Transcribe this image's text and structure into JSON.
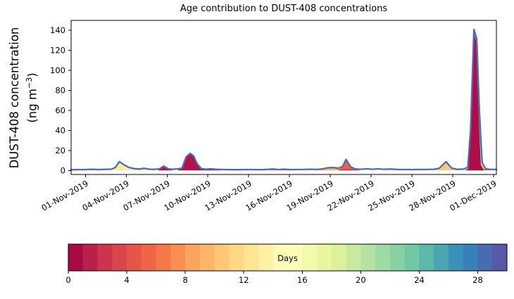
{
  "figure": {
    "title": "Age contribution to DUST-408 concentrations",
    "ylabel": {
      "line1": "DUST-408 concentration",
      "line2_prefix": "(ng m",
      "line2_sup": "−3",
      "line2_suffix": ")"
    }
  },
  "chart_data": {
    "type": "area",
    "subtype": "stacked-area-by-age",
    "title": "Age contribution to DUST-408 concentrations",
    "xlabel": "",
    "ylabel": "DUST-408 concentration (ng m^-3)",
    "x_unit": "days since 01-Nov-2019 00:00",
    "xlim": [
      -1.05,
      30.2
    ],
    "ylim": [
      -4,
      150
    ],
    "grid": false,
    "legend": "colorbar",
    "y_ticks": [
      0,
      20,
      40,
      60,
      80,
      100,
      120,
      140
    ],
    "x_ticks": [
      {
        "day": 0,
        "label": "01-Nov-2019"
      },
      {
        "day": 3,
        "label": "04-Nov-2019"
      },
      {
        "day": 6,
        "label": "07-Nov-2019"
      },
      {
        "day": 9,
        "label": "10-Nov-2019"
      },
      {
        "day": 12,
        "label": "13-Nov-2019"
      },
      {
        "day": 15,
        "label": "16-Nov-2019"
      },
      {
        "day": 18,
        "label": "19-Nov-2019"
      },
      {
        "day": 21,
        "label": "22-Nov-2019"
      },
      {
        "day": 24,
        "label": "25-Nov-2019"
      },
      {
        "day": 27,
        "label": "28-Nov-2019"
      },
      {
        "day": 30,
        "label": "01-Dec-2019"
      }
    ],
    "line_color": "#4a6db5",
    "line_width": 2.3,
    "total_line": [
      [
        -1.05,
        0.8
      ],
      [
        0,
        0.9
      ],
      [
        0.5,
        1.1
      ],
      [
        1,
        0.9
      ],
      [
        1.5,
        1.1
      ],
      [
        1.9,
        1.3
      ],
      [
        2.2,
        3.0
      ],
      [
        2.5,
        8.8
      ],
      [
        2.8,
        6.0
      ],
      [
        3.2,
        3.0
      ],
      [
        3.6,
        1.8
      ],
      [
        4.0,
        1.4
      ],
      [
        4.3,
        2.1
      ],
      [
        4.7,
        1.3
      ],
      [
        5.1,
        1.1
      ],
      [
        5.45,
        1.6
      ],
      [
        5.75,
        4.3
      ],
      [
        6.1,
        1.6
      ],
      [
        6.4,
        1.1
      ],
      [
        6.8,
        1.6
      ],
      [
        7.1,
        2.2
      ],
      [
        7.4,
        13.5
      ],
      [
        7.7,
        17.0
      ],
      [
        7.95,
        14.5
      ],
      [
        8.2,
        7.0
      ],
      [
        8.5,
        2.0
      ],
      [
        8.8,
        1.3
      ],
      [
        9.2,
        1.6
      ],
      [
        9.6,
        1.1
      ],
      [
        10.2,
        0.9
      ],
      [
        11,
        0.8
      ],
      [
        12,
        0.9
      ],
      [
        13,
        0.8
      ],
      [
        13.8,
        1.4
      ],
      [
        14.2,
        0.9
      ],
      [
        14.6,
        1.3
      ],
      [
        15,
        0.9
      ],
      [
        16,
        1.0
      ],
      [
        16.5,
        1.2
      ],
      [
        17,
        1.0
      ],
      [
        17.4,
        1.5
      ],
      [
        17.8,
        2.7
      ],
      [
        18.2,
        2.9
      ],
      [
        18.6,
        2.2
      ],
      [
        18.9,
        4.0
      ],
      [
        19.15,
        11.0
      ],
      [
        19.5,
        3.5
      ],
      [
        19.8,
        1.6
      ],
      [
        20.2,
        1.2
      ],
      [
        20.7,
        1.6
      ],
      [
        21.1,
        1.2
      ],
      [
        21.5,
        1.6
      ],
      [
        21.9,
        1.2
      ],
      [
        22.4,
        1.4
      ],
      [
        23,
        1.0
      ],
      [
        24,
        0.9
      ],
      [
        25,
        1.0
      ],
      [
        25.6,
        1.2
      ],
      [
        26.0,
        2.2
      ],
      [
        26.5,
        8.8
      ],
      [
        26.9,
        2.4
      ],
      [
        27.3,
        1.1
      ],
      [
        27.8,
        1.4
      ],
      [
        28.1,
        3.0
      ],
      [
        28.3,
        40
      ],
      [
        28.55,
        141
      ],
      [
        28.75,
        132
      ],
      [
        28.95,
        60
      ],
      [
        29.15,
        8
      ],
      [
        29.4,
        1.6
      ],
      [
        29.7,
        1.1
      ],
      [
        30.2,
        1.0
      ]
    ],
    "age_regions": [
      {
        "age_days": 15,
        "color": "#fdeca2",
        "points": [
          [
            1.8,
            0.8
          ],
          [
            2.2,
            2.8
          ],
          [
            2.5,
            8.3
          ],
          [
            2.8,
            5.6
          ],
          [
            3.2,
            2.7
          ],
          [
            3.6,
            1.5
          ],
          [
            4.0,
            1.1
          ],
          [
            4.3,
            1.8
          ],
          [
            4.7,
            1.0
          ],
          [
            5.1,
            0.5
          ]
        ]
      },
      {
        "age_days": 1,
        "color": "#b01349",
        "points": [
          [
            5.35,
            0.5
          ],
          [
            5.75,
            4.0
          ],
          [
            6.1,
            1.3
          ],
          [
            6.4,
            0.6
          ]
        ]
      },
      {
        "age_days": 1,
        "color": "#b01349",
        "points": [
          [
            6.8,
            1.2
          ],
          [
            7.1,
            1.9
          ],
          [
            7.4,
            13.2
          ],
          [
            7.7,
            16.7
          ],
          [
            7.95,
            14.2
          ],
          [
            8.2,
            6.7
          ],
          [
            8.5,
            1.7
          ],
          [
            8.8,
            1.0
          ],
          [
            9.2,
            1.3
          ],
          [
            9.6,
            0.8
          ],
          [
            10.0,
            0.4
          ]
        ]
      },
      {
        "age_days": 8,
        "color": "#f78a52",
        "points": [
          [
            13.5,
            0.4
          ],
          [
            13.9,
            1.0
          ],
          [
            14.3,
            0.6
          ],
          [
            14.7,
            1.0
          ],
          [
            15.2,
            0.4
          ]
        ]
      },
      {
        "age_days": 11,
        "color": "#fdb567",
        "points": [
          [
            17.2,
            0.6
          ],
          [
            17.8,
            2.4
          ],
          [
            18.2,
            2.6
          ],
          [
            18.6,
            1.9
          ],
          [
            19.0,
            1.2
          ],
          [
            19.4,
            0.5
          ]
        ]
      },
      {
        "age_days": 8,
        "color": "#ee6341",
        "points": [
          [
            18.6,
            0.8
          ],
          [
            18.9,
            3.7
          ],
          [
            19.15,
            10.6
          ],
          [
            19.5,
            3.2
          ],
          [
            19.8,
            1.3
          ],
          [
            20.1,
            0.5
          ]
        ]
      },
      {
        "age_days": 3,
        "color": "#cf384d",
        "points": [
          [
            18.6,
            0.4
          ],
          [
            19.0,
            1.6
          ],
          [
            19.4,
            1.4
          ],
          [
            19.8,
            0.7
          ],
          [
            20.1,
            0.3
          ]
        ]
      },
      {
        "age_days": 11,
        "color": "#fcc87d",
        "points": [
          [
            25.6,
            0.8
          ],
          [
            26.0,
            1.9
          ],
          [
            26.5,
            8.4
          ],
          [
            26.9,
            2.0
          ],
          [
            27.3,
            0.6
          ]
        ]
      },
      {
        "age_days": 13,
        "color": "#fed27f",
        "points": [
          [
            27.9,
            0.5
          ],
          [
            28.15,
            2.5
          ],
          [
            28.35,
            60
          ],
          [
            28.6,
            140
          ],
          [
            28.85,
            125
          ],
          [
            29.05,
            30
          ],
          [
            29.3,
            2.0
          ],
          [
            29.55,
            0.7
          ]
        ]
      },
      {
        "age_days": 6,
        "color": "#f2703f",
        "points": [
          [
            28.9,
            0.3
          ],
          [
            29.2,
            1.8
          ],
          [
            29.5,
            0.6
          ],
          [
            29.8,
            0.3
          ]
        ]
      },
      {
        "age_days": 0,
        "color": "#ae0e48",
        "points": [
          [
            27.95,
            0.5
          ],
          [
            28.15,
            2.0
          ],
          [
            28.35,
            55
          ],
          [
            28.55,
            138
          ],
          [
            28.7,
            130
          ],
          [
            28.9,
            55
          ],
          [
            29.05,
            6
          ],
          [
            29.25,
            0.7
          ]
        ]
      }
    ],
    "colorbar": {
      "label": "Days",
      "ticks": [
        0,
        4,
        8,
        12,
        16,
        20,
        24,
        28
      ],
      "vmin": 0,
      "vmax": 30,
      "segments": 30,
      "colormap": "Spectral",
      "stops": [
        "#9e0142",
        "#d53e4f",
        "#f46d43",
        "#fdae61",
        "#fee08b",
        "#ffffbf",
        "#e6f598",
        "#abdda4",
        "#66c2a5",
        "#3288bd",
        "#5e4fa2"
      ]
    }
  }
}
